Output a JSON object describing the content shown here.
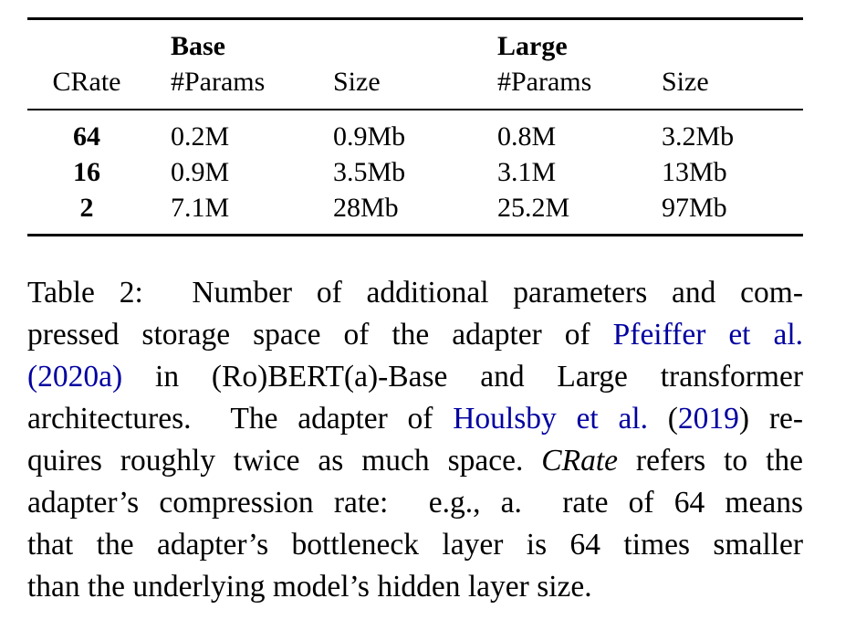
{
  "table": {
    "group_headers": {
      "base": "Base",
      "large": "Large"
    },
    "col_headers": {
      "crate": "CRate",
      "base_params": "#Params",
      "base_size": "Size",
      "large_params": "#Params",
      "large_size": "Size"
    },
    "rows": [
      {
        "crate": "64",
        "base_params": "0.2M",
        "base_size": "0.9Mb",
        "large_params": "0.8M",
        "large_size": "3.2Mb"
      },
      {
        "crate": "16",
        "base_params": "0.9M",
        "base_size": "3.5Mb",
        "large_params": "3.1M",
        "large_size": "13Mb"
      },
      {
        "crate": "2",
        "base_params": "7.1M",
        "base_size": "28Mb",
        "large_params": "25.2M",
        "large_size": "97Mb"
      }
    ]
  },
  "caption": {
    "link_color": "#0000a0",
    "lines": [
      [
        {
          "k": "text",
          "t": "Table 2:  Number of additional parameters and com-"
        }
      ],
      [
        {
          "k": "text",
          "t": "pressed storage space of the adapter of "
        },
        {
          "k": "link",
          "t": "Pfeiffer et al."
        }
      ],
      [
        {
          "k": "link",
          "t": "(2020a)"
        },
        {
          "k": "text",
          "t": " in (Ro)BERT(a)-Base and Large transformer"
        }
      ],
      [
        {
          "k": "text",
          "t": "architectures.  The adapter of "
        },
        {
          "k": "link",
          "t": "Houlsby et al."
        },
        {
          "k": "text",
          "t": " ("
        },
        {
          "k": "link",
          "t": "2019"
        },
        {
          "k": "text",
          "t": ") re-"
        }
      ],
      [
        {
          "k": "text",
          "t": "quires roughly twice as much space. "
        },
        {
          "k": "it",
          "t": "CRate"
        },
        {
          "k": "text",
          "t": " refers to the"
        }
      ],
      [
        {
          "k": "text",
          "t": "adapter’s compression rate:  e.g., a.  rate of 64 means"
        }
      ],
      [
        {
          "k": "text",
          "t": "that the adapter’s bottleneck layer is 64 times smaller"
        }
      ],
      [
        {
          "k": "text",
          "t": "than the underlying model’s hidden layer size."
        }
      ]
    ]
  }
}
